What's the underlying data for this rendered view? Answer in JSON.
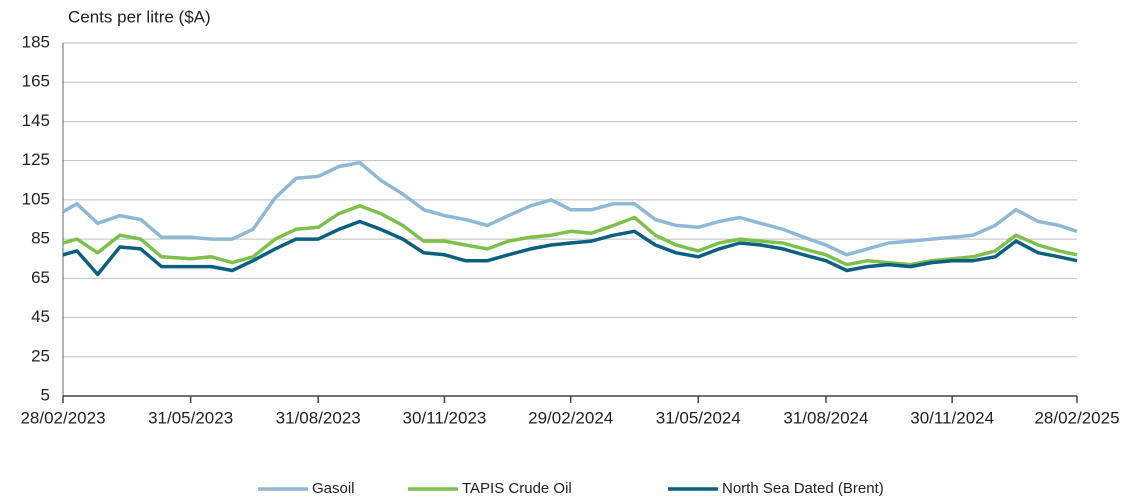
{
  "chart_data": {
    "type": "line",
    "y_label": "Cents per litre ($A)",
    "x": [
      "28/02/2023",
      "10/03/2023",
      "25/03/2023",
      "10/04/2023",
      "25/04/2023",
      "10/05/2023",
      "31/05/2023",
      "15/06/2023",
      "30/06/2023",
      "15/07/2023",
      "31/07/2023",
      "15/08/2023",
      "31/08/2023",
      "15/09/2023",
      "30/09/2023",
      "15/10/2023",
      "31/10/2023",
      "15/11/2023",
      "30/11/2023",
      "15/12/2023",
      "31/12/2023",
      "15/01/2024",
      "31/01/2024",
      "15/02/2024",
      "29/02/2024",
      "15/03/2024",
      "31/03/2024",
      "15/04/2024",
      "30/04/2024",
      "15/05/2024",
      "31/05/2024",
      "15/06/2024",
      "30/06/2024",
      "15/07/2024",
      "31/07/2024",
      "15/08/2024",
      "31/08/2024",
      "15/09/2024",
      "30/09/2024",
      "15/10/2024",
      "31/10/2024",
      "15/11/2024",
      "30/11/2024",
      "15/12/2024",
      "31/12/2024",
      "15/01/2025",
      "31/01/2025",
      "15/02/2025",
      "28/02/2025"
    ],
    "series": [
      {
        "name": "Gasoil",
        "color": "#8fb8d4",
        "values": [
          99,
          103,
          93,
          97,
          95,
          86,
          86,
          85,
          85,
          90,
          106,
          116,
          117,
          122,
          124,
          115,
          108,
          100,
          97,
          95,
          92,
          97,
          102,
          105,
          100,
          100,
          103,
          103,
          95,
          92,
          91,
          94,
          96,
          93,
          90,
          86,
          82,
          77,
          80,
          83,
          84,
          85,
          86,
          87,
          92,
          100,
          94,
          92,
          89
        ]
      },
      {
        "name": "TAPIS Crude Oil",
        "color": "#7dc04b",
        "values": [
          83,
          85,
          78,
          87,
          85,
          76,
          75,
          76,
          73,
          76,
          85,
          90,
          91,
          98,
          102,
          98,
          92,
          84,
          84,
          82,
          80,
          84,
          86,
          87,
          89,
          88,
          92,
          96,
          87,
          82,
          79,
          83,
          85,
          84,
          83,
          80,
          77,
          72,
          74,
          73,
          72,
          74,
          75,
          76,
          79,
          87,
          82,
          79,
          77
        ]
      },
      {
        "name": "North Sea Dated (Brent)",
        "color": "#0b5f7f",
        "values": [
          77,
          79,
          67,
          81,
          80,
          71,
          71,
          71,
          69,
          74,
          80,
          85,
          85,
          90,
          94,
          90,
          85,
          78,
          77,
          74,
          74,
          77,
          80,
          82,
          83,
          84,
          87,
          89,
          82,
          78,
          76,
          80,
          83,
          82,
          80,
          77,
          74,
          69,
          71,
          72,
          71,
          73,
          74,
          74,
          76,
          84,
          78,
          76,
          74
        ]
      }
    ],
    "xlim": [
      "28/02/2023",
      "28/02/2025"
    ],
    "xticks": [
      "28/02/2023",
      "31/05/2023",
      "31/08/2023",
      "30/11/2023",
      "29/02/2024",
      "31/05/2024",
      "31/08/2024",
      "30/11/2024",
      "28/02/2025"
    ],
    "ylim": [
      5,
      185
    ],
    "yticks": [
      5,
      25,
      45,
      65,
      85,
      105,
      125,
      145,
      165,
      185
    ],
    "grid": true,
    "legend": "bottom"
  }
}
